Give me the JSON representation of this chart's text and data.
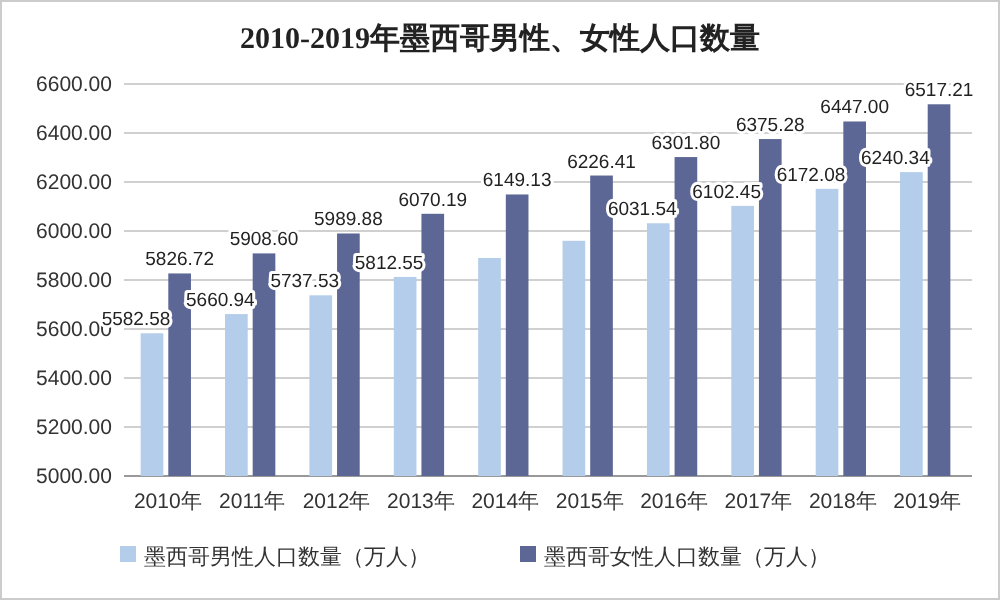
{
  "chart_data": {
    "type": "bar",
    "title": "2010-2019年墨西哥男性、女性人口数量",
    "categories": [
      "2010年",
      "2011年",
      "2012年",
      "2013年",
      "2014年",
      "2015年",
      "2016年",
      "2017年",
      "2018年",
      "2019年"
    ],
    "series": [
      {
        "name": "墨西哥男性人口数量（万人）",
        "color": "#b4cdea",
        "values": [
          5582.58,
          5660.94,
          5737.53,
          5812.55,
          5890,
          5960,
          6031.54,
          6102.45,
          6172.08,
          6240.34
        ],
        "value_labels": [
          "5582.58",
          "5660.94",
          "5737.53",
          "5812.55",
          null,
          null,
          "6031.54",
          "6102.45",
          "6172.08",
          "6240.34"
        ]
      },
      {
        "name": "墨西哥女性人口数量（万人）",
        "color": "#5d6796",
        "values": [
          5826.72,
          5908.6,
          5989.88,
          6070.19,
          6149.13,
          6226.41,
          6301.8,
          6375.28,
          6447.0,
          6517.21
        ],
        "value_labels": [
          "5826.72",
          "5908.60",
          "5989.88",
          "6070.19",
          "6149.13",
          "6226.41",
          "6301.80",
          "6375.28",
          "6447.00",
          "6517.21"
        ]
      }
    ],
    "ylim": [
      5000,
      6600
    ],
    "yticks": [
      {
        "value": 5000,
        "label": "5000.00"
      },
      {
        "value": 5200,
        "label": "5200.00"
      },
      {
        "value": 5400,
        "label": "5400.00"
      },
      {
        "value": 5600,
        "label": "5600.00"
      },
      {
        "value": 5800,
        "label": "5800.00"
      },
      {
        "value": 6000,
        "label": "6000.00"
      },
      {
        "value": 6200,
        "label": "6200.00"
      },
      {
        "value": 6400,
        "label": "6400.00"
      },
      {
        "value": 6600,
        "label": "6600.00"
      }
    ],
    "grid": "y",
    "legend": "bottom"
  }
}
